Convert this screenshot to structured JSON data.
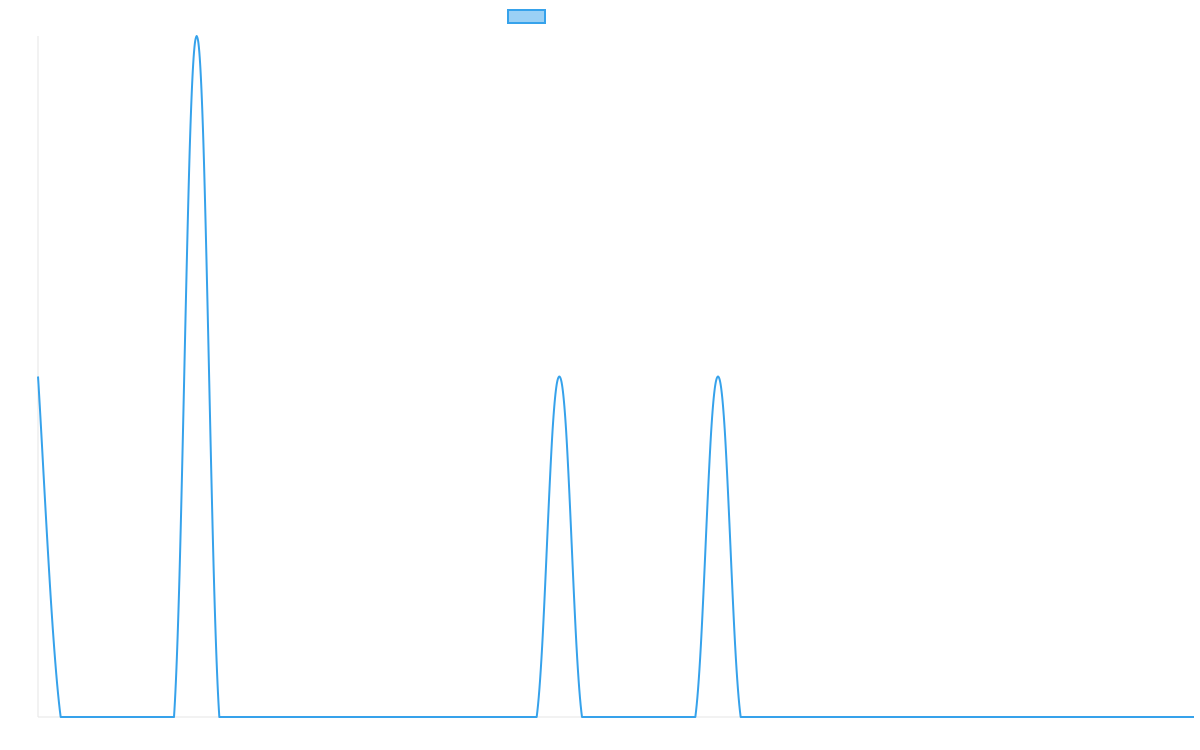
{
  "chart_data": {
    "type": "line",
    "title": "",
    "xlabel": "",
    "ylabel": "",
    "legend": {
      "position": "top",
      "entries": [
        {
          "label": ""
        }
      ]
    },
    "x": [
      0,
      1,
      2,
      3,
      4,
      5,
      6,
      7,
      8,
      9,
      10,
      11,
      12,
      13,
      14,
      15,
      16,
      17,
      18,
      19,
      20,
      21,
      22,
      23,
      24,
      25,
      26,
      27,
      28,
      29,
      30,
      31,
      32,
      33,
      34,
      35,
      36,
      37,
      38,
      39,
      40,
      41,
      42,
      43,
      44,
      45,
      46,
      47,
      48,
      49,
      50,
      51
    ],
    "series": [
      {
        "values": [
          1,
          0,
          0,
          0,
          0,
          0,
          0,
          2,
          0,
          0,
          0,
          0,
          0,
          0,
          0,
          0,
          0,
          0,
          0,
          0,
          0,
          0,
          0,
          1,
          0,
          0,
          0,
          0,
          0,
          0,
          1,
          0,
          0,
          0,
          0,
          0,
          0,
          0,
          0,
          0,
          0,
          0,
          0,
          0,
          0,
          0,
          0,
          0,
          0,
          0,
          0,
          0
        ]
      }
    ],
    "ylim": [
      0,
      2
    ],
    "grid": false,
    "colors": {
      "line": "#36a2eb",
      "fill": "#9ad0f5",
      "axis": "#e5e5e5"
    }
  }
}
